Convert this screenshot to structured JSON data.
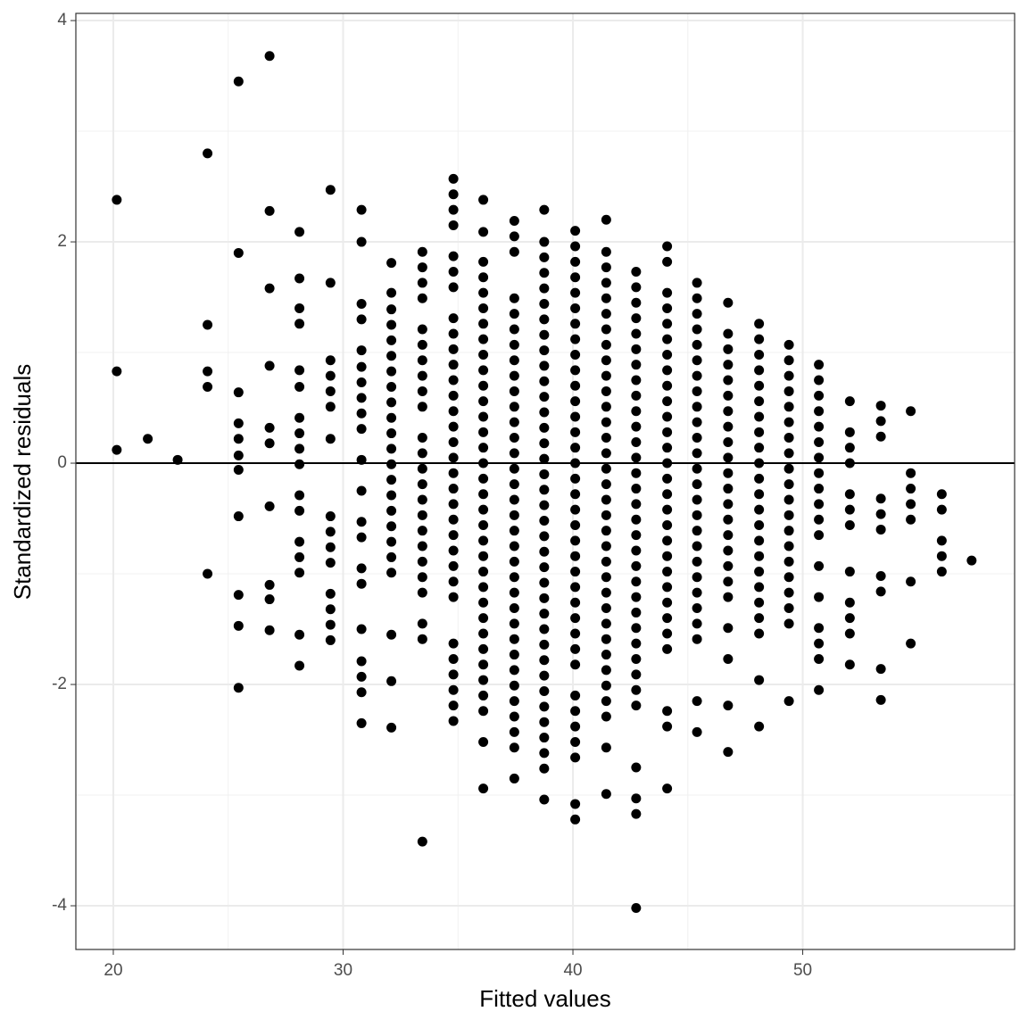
{
  "chart_data": {
    "type": "scatter",
    "x_label": "Fitted values",
    "y_label": "Standardized residuals",
    "xlim": [
      18.37,
      59.22
    ],
    "ylim": [
      -4.395,
      4.065
    ],
    "xticks": [
      20,
      30,
      40,
      50
    ],
    "yticks": [
      -4,
      -2,
      0,
      2,
      4
    ],
    "grid": true,
    "hline": 0,
    "color": "#000000",
    "x": [
      20.15,
      20.15,
      20.15,
      21.5,
      22.8,
      24.1,
      24.1,
      24.1,
      24.1,
      24.1,
      25.45,
      25.45,
      25.45,
      25.45,
      25.45,
      25.45,
      25.45,
      25.45,
      25.45,
      25.45,
      25.45,
      26.8,
      26.8,
      26.8,
      26.8,
      26.8,
      26.8,
      26.8,
      26.8,
      26.8,
      26.8,
      28.1,
      28.1,
      28.1,
      28.1,
      28.1,
      28.1,
      28.1,
      28.1,
      28.1,
      28.1,
      28.1,
      28.1,
      28.1,
      28.1,
      28.1,
      28.1,
      28.1,
      29.45,
      29.45,
      29.45,
      29.45,
      29.45,
      29.45,
      29.45,
      29.45,
      29.45,
      29.45,
      29.45,
      29.45,
      29.45,
      29.45,
      29.45,
      30.8,
      30.8,
      30.8,
      30.8,
      30.8,
      30.8,
      30.8,
      30.8,
      30.8,
      30.8,
      30.8,
      30.8,
      30.8,
      30.8,
      30.8,
      30.8,
      30.8,
      30.8,
      30.8,
      30.8,
      30.8,
      32.1,
      32.1,
      32.1,
      32.1,
      32.1,
      32.1,
      32.1,
      32.1,
      32.1,
      32.1,
      32.1,
      32.1,
      32.1,
      32.1,
      32.1,
      32.1,
      32.1,
      32.1,
      32.1,
      32.1,
      32.1,
      32.1,
      32.1,
      33.45,
      33.45,
      33.45,
      33.45,
      33.45,
      33.45,
      33.45,
      33.45,
      33.45,
      33.45,
      33.45,
      33.45,
      33.45,
      33.45,
      33.45,
      33.45,
      33.45,
      33.45,
      33.45,
      33.45,
      33.45,
      33.45,
      33.45,
      33.45,
      34.8,
      34.8,
      34.8,
      34.8,
      34.8,
      34.8,
      34.8,
      34.8,
      34.8,
      34.8,
      34.8,
      34.8,
      34.8,
      34.8,
      34.8,
      34.8,
      34.8,
      34.8,
      34.8,
      34.8,
      34.8,
      34.8,
      34.8,
      34.8,
      34.8,
      34.8,
      34.8,
      34.8,
      34.8,
      34.8,
      34.8,
      34.8,
      36.1,
      36.1,
      36.1,
      36.1,
      36.1,
      36.1,
      36.1,
      36.1,
      36.1,
      36.1,
      36.1,
      36.1,
      36.1,
      36.1,
      36.1,
      36.1,
      36.1,
      36.1,
      36.1,
      36.1,
      36.1,
      36.1,
      36.1,
      36.1,
      36.1,
      36.1,
      36.1,
      36.1,
      36.1,
      36.1,
      36.1,
      36.1,
      36.1,
      36.1,
      37.45,
      37.45,
      37.45,
      37.45,
      37.45,
      37.45,
      37.45,
      37.45,
      37.45,
      37.45,
      37.45,
      37.45,
      37.45,
      37.45,
      37.45,
      37.45,
      37.45,
      37.45,
      37.45,
      37.45,
      37.45,
      37.45,
      37.45,
      37.45,
      37.45,
      37.45,
      37.45,
      37.45,
      37.45,
      37.45,
      37.45,
      37.45,
      37.45,
      37.45,
      38.75,
      38.75,
      38.75,
      38.75,
      38.75,
      38.75,
      38.75,
      38.75,
      38.75,
      38.75,
      38.75,
      38.75,
      38.75,
      38.75,
      38.75,
      38.75,
      38.75,
      38.75,
      38.75,
      38.75,
      38.75,
      38.75,
      38.75,
      38.75,
      38.75,
      38.75,
      38.75,
      38.75,
      38.75,
      38.75,
      38.75,
      38.75,
      38.75,
      38.75,
      38.75,
      38.75,
      38.75,
      40.1,
      40.1,
      40.1,
      40.1,
      40.1,
      40.1,
      40.1,
      40.1,
      40.1,
      40.1,
      40.1,
      40.1,
      40.1,
      40.1,
      40.1,
      40.1,
      40.1,
      40.1,
      40.1,
      40.1,
      40.1,
      40.1,
      40.1,
      40.1,
      40.1,
      40.1,
      40.1,
      40.1,
      40.1,
      40.1,
      40.1,
      40.1,
      40.1,
      40.1,
      40.1,
      40.1,
      41.45,
      41.45,
      41.45,
      41.45,
      41.45,
      41.45,
      41.45,
      41.45,
      41.45,
      41.45,
      41.45,
      41.45,
      41.45,
      41.45,
      41.45,
      41.45,
      41.45,
      41.45,
      41.45,
      41.45,
      41.45,
      41.45,
      41.45,
      41.45,
      41.45,
      41.45,
      41.45,
      41.45,
      41.45,
      41.45,
      41.45,
      41.45,
      41.45,
      41.45,
      42.75,
      42.75,
      42.75,
      42.75,
      42.75,
      42.75,
      42.75,
      42.75,
      42.75,
      42.75,
      42.75,
      42.75,
      42.75,
      42.75,
      42.75,
      42.75,
      42.75,
      42.75,
      42.75,
      42.75,
      42.75,
      42.75,
      42.75,
      42.75,
      42.75,
      42.75,
      42.75,
      42.75,
      42.75,
      42.75,
      42.75,
      42.75,
      42.75,
      44.1,
      44.1,
      44.1,
      44.1,
      44.1,
      44.1,
      44.1,
      44.1,
      44.1,
      44.1,
      44.1,
      44.1,
      44.1,
      44.1,
      44.1,
      44.1,
      44.1,
      44.1,
      44.1,
      44.1,
      44.1,
      44.1,
      44.1,
      44.1,
      44.1,
      44.1,
      44.1,
      44.1,
      44.1,
      45.4,
      45.4,
      45.4,
      45.4,
      45.4,
      45.4,
      45.4,
      45.4,
      45.4,
      45.4,
      45.4,
      45.4,
      45.4,
      45.4,
      45.4,
      45.4,
      45.4,
      45.4,
      45.4,
      45.4,
      45.4,
      45.4,
      45.4,
      45.4,
      45.4,
      45.4,
      46.75,
      46.75,
      46.75,
      46.75,
      46.75,
      46.75,
      46.75,
      46.75,
      46.75,
      46.75,
      46.75,
      46.75,
      46.75,
      46.75,
      46.75,
      46.75,
      46.75,
      46.75,
      46.75,
      46.75,
      46.75,
      46.75,
      46.75,
      48.1,
      48.1,
      48.1,
      48.1,
      48.1,
      48.1,
      48.1,
      48.1,
      48.1,
      48.1,
      48.1,
      48.1,
      48.1,
      48.1,
      48.1,
      48.1,
      48.1,
      48.1,
      48.1,
      48.1,
      48.1,
      48.1,
      48.1,
      49.4,
      49.4,
      49.4,
      49.4,
      49.4,
      49.4,
      49.4,
      49.4,
      49.4,
      49.4,
      49.4,
      49.4,
      49.4,
      49.4,
      49.4,
      49.4,
      49.4,
      49.4,
      49.4,
      49.4,
      50.7,
      50.7,
      50.7,
      50.7,
      50.7,
      50.7,
      50.7,
      50.7,
      50.7,
      50.7,
      50.7,
      50.7,
      50.7,
      50.7,
      50.7,
      50.7,
      50.7,
      50.7,
      52.05,
      52.05,
      52.05,
      52.05,
      52.05,
      52.05,
      52.05,
      52.05,
      52.05,
      52.05,
      52.05,
      52.05,
      53.4,
      53.4,
      53.4,
      53.4,
      53.4,
      53.4,
      53.4,
      53.4,
      53.4,
      53.4,
      54.7,
      54.7,
      54.7,
      54.7,
      54.7,
      54.7,
      54.7,
      56.05,
      56.05,
      56.05,
      56.05,
      56.05,
      57.35
    ],
    "values": [
      2.38,
      0.83,
      0.12,
      0.22,
      0.03,
      2.8,
      1.25,
      0.83,
      0.69,
      -1.0,
      3.45,
      1.9,
      0.64,
      0.36,
      0.22,
      0.07,
      -0.06,
      -0.48,
      -1.19,
      -1.47,
      -2.03,
      3.68,
      2.28,
      1.58,
      0.88,
      0.32,
      0.18,
      -0.39,
      -1.1,
      -1.23,
      -1.51,
      2.09,
      1.67,
      1.4,
      1.26,
      0.84,
      0.69,
      0.41,
      0.27,
      0.13,
      -0.01,
      -0.29,
      -0.43,
      -0.71,
      -0.85,
      -0.99,
      -1.55,
      -1.83,
      2.47,
      1.63,
      0.93,
      0.79,
      0.65,
      0.51,
      0.22,
      -0.48,
      -0.62,
      -0.76,
      -0.9,
      -1.18,
      -1.32,
      -1.46,
      -1.6,
      2.29,
      2.0,
      1.44,
      1.3,
      1.02,
      0.87,
      0.73,
      0.59,
      0.45,
      0.31,
      0.03,
      -0.25,
      -0.53,
      -0.67,
      -0.95,
      -1.09,
      -1.5,
      -1.79,
      -1.93,
      -2.07,
      -2.35,
      1.81,
      1.54,
      1.39,
      1.25,
      1.11,
      0.97,
      0.83,
      0.69,
      0.55,
      0.41,
      0.27,
      0.13,
      -0.01,
      -0.15,
      -0.29,
      -0.43,
      -0.57,
      -0.71,
      -0.85,
      -0.99,
      -1.55,
      -1.97,
      -2.39,
      1.91,
      1.77,
      1.63,
      1.49,
      1.21,
      1.07,
      0.93,
      0.79,
      0.65,
      0.51,
      0.23,
      0.09,
      -0.05,
      -0.19,
      -0.33,
      -0.47,
      -0.61,
      -0.75,
      -0.89,
      -1.03,
      -1.17,
      -1.45,
      -1.59,
      -3.42,
      2.57,
      2.43,
      2.29,
      2.15,
      1.87,
      1.73,
      1.59,
      1.31,
      1.17,
      1.03,
      0.89,
      0.75,
      0.61,
      0.47,
      0.33,
      0.19,
      0.05,
      -0.09,
      -0.23,
      -0.37,
      -0.51,
      -0.65,
      -0.79,
      -0.93,
      -1.07,
      -1.21,
      -1.63,
      -1.77,
      -1.91,
      -2.05,
      -2.19,
      -2.33,
      2.38,
      2.09,
      1.82,
      1.68,
      1.54,
      1.4,
      1.26,
      1.12,
      0.98,
      0.84,
      0.7,
      0.56,
      0.42,
      0.28,
      0.14,
      0.0,
      -0.14,
      -0.28,
      -0.42,
      -0.56,
      -0.7,
      -0.84,
      -0.98,
      -1.12,
      -1.26,
      -1.4,
      -1.54,
      -1.68,
      -1.82,
      -1.96,
      -2.1,
      -2.24,
      -2.52,
      -2.94,
      2.19,
      2.05,
      1.91,
      1.49,
      1.35,
      1.21,
      1.07,
      0.93,
      0.79,
      0.65,
      0.51,
      0.37,
      0.23,
      0.09,
      -0.05,
      -0.19,
      -0.33,
      -0.47,
      -0.61,
      -0.75,
      -0.89,
      -1.03,
      -1.17,
      -1.31,
      -1.45,
      -1.59,
      -1.73,
      -1.87,
      -2.01,
      -2.15,
      -2.29,
      -2.43,
      -2.57,
      -2.85,
      2.29,
      2.0,
      1.86,
      1.72,
      1.58,
      1.44,
      1.3,
      1.16,
      1.02,
      0.88,
      0.74,
      0.6,
      0.46,
      0.32,
      0.18,
      0.04,
      -0.1,
      -0.24,
      -0.38,
      -0.52,
      -0.66,
      -0.8,
      -0.94,
      -1.08,
      -1.22,
      -1.36,
      -1.5,
      -1.64,
      -1.78,
      -1.92,
      -2.06,
      -2.2,
      -2.34,
      -2.48,
      -2.62,
      -2.76,
      -3.04,
      2.1,
      1.96,
      1.82,
      1.68,
      1.54,
      1.4,
      1.26,
      1.12,
      0.98,
      0.84,
      0.7,
      0.56,
      0.42,
      0.28,
      0.14,
      0.0,
      -0.14,
      -0.28,
      -0.42,
      -0.56,
      -0.7,
      -0.84,
      -0.98,
      -1.12,
      -1.26,
      -1.4,
      -1.54,
      -1.68,
      -1.82,
      -2.1,
      -2.24,
      -2.38,
      -2.52,
      -2.66,
      -3.08,
      -3.22,
      2.2,
      1.91,
      1.77,
      1.63,
      1.49,
      1.35,
      1.21,
      1.07,
      0.93,
      0.79,
      0.65,
      0.51,
      0.37,
      0.23,
      0.09,
      -0.05,
      -0.19,
      -0.33,
      -0.47,
      -0.61,
      -0.75,
      -0.89,
      -1.03,
      -1.17,
      -1.31,
      -1.45,
      -1.59,
      -1.73,
      -1.87,
      -2.01,
      -2.15,
      -2.29,
      -2.57,
      -2.99,
      1.73,
      1.59,
      1.45,
      1.31,
      1.17,
      1.03,
      0.89,
      0.75,
      0.61,
      0.47,
      0.33,
      0.19,
      0.05,
      -0.09,
      -0.23,
      -0.37,
      -0.51,
      -0.65,
      -0.79,
      -0.93,
      -1.07,
      -1.21,
      -1.35,
      -1.49,
      -1.63,
      -1.77,
      -1.91,
      -2.05,
      -2.19,
      -2.75,
      -3.03,
      -3.17,
      -4.02,
      1.96,
      1.82,
      1.54,
      1.4,
      1.26,
      1.12,
      0.98,
      0.84,
      0.7,
      0.56,
      0.42,
      0.28,
      0.14,
      0.0,
      -0.14,
      -0.28,
      -0.42,
      -0.56,
      -0.7,
      -0.84,
      -0.98,
      -1.12,
      -1.26,
      -1.4,
      -1.54,
      -1.68,
      -2.24,
      -2.38,
      -2.94,
      1.63,
      1.49,
      1.35,
      1.21,
      1.07,
      0.93,
      0.79,
      0.65,
      0.51,
      0.37,
      0.23,
      0.09,
      -0.05,
      -0.19,
      -0.33,
      -0.47,
      -0.61,
      -0.75,
      -0.89,
      -1.03,
      -1.17,
      -1.31,
      -1.45,
      -1.59,
      -2.15,
      -2.43,
      1.45,
      1.17,
      1.03,
      0.89,
      0.75,
      0.61,
      0.47,
      0.33,
      0.19,
      0.05,
      -0.09,
      -0.23,
      -0.37,
      -0.51,
      -0.65,
      -0.79,
      -0.93,
      -1.07,
      -1.21,
      -1.49,
      -1.77,
      -2.19,
      -2.61,
      1.26,
      1.12,
      0.98,
      0.84,
      0.7,
      0.56,
      0.42,
      0.28,
      0.14,
      0.0,
      -0.14,
      -0.28,
      -0.42,
      -0.56,
      -0.7,
      -0.84,
      -0.98,
      -1.12,
      -1.26,
      -1.4,
      -1.54,
      -1.96,
      -2.38,
      1.07,
      0.93,
      0.79,
      0.65,
      0.51,
      0.37,
      0.23,
      0.09,
      -0.05,
      -0.19,
      -0.33,
      -0.47,
      -0.61,
      -0.75,
      -0.89,
      -1.03,
      -1.17,
      -1.31,
      -1.45,
      -2.15,
      0.89,
      0.75,
      0.61,
      0.47,
      0.33,
      0.19,
      0.05,
      -0.09,
      -0.23,
      -0.37,
      -0.51,
      -0.65,
      -0.93,
      -1.21,
      -1.49,
      -1.63,
      -1.77,
      -2.05,
      0.56,
      0.28,
      0.14,
      0.0,
      -0.28,
      -0.42,
      -0.56,
      -0.98,
      -1.26,
      -1.4,
      -1.54,
      -1.82,
      0.52,
      0.38,
      0.24,
      -0.32,
      -0.46,
      -0.6,
      -1.02,
      -1.16,
      -1.86,
      -2.14,
      0.47,
      -0.09,
      -0.23,
      -0.37,
      -0.51,
      -1.07,
      -1.63,
      -0.28,
      -0.42,
      -0.7,
      -0.84,
      -0.98,
      -0.88
    ]
  }
}
